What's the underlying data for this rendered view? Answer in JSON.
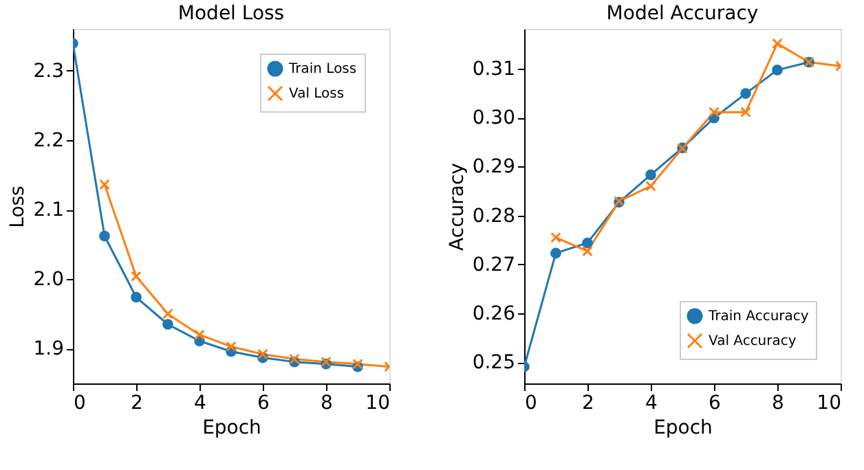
{
  "chart_data": [
    {
      "type": "line",
      "title": "Model Loss",
      "xlabel": "Epoch",
      "ylabel": "Loss",
      "xlim": [
        0,
        10
      ],
      "xticks": [
        0,
        2,
        4,
        6,
        8,
        10
      ],
      "ylim": [
        1.85,
        2.36
      ],
      "yticks": [
        1.9,
        {
          "value": 2.0,
          "label": "2.0"
        },
        2.1,
        2.2,
        2.3
      ],
      "legend": "top right",
      "grid": false,
      "series": [
        {
          "name": "Train Loss",
          "color": "#1f77b4",
          "marker": "circle",
          "x": [
            0,
            1,
            2,
            3,
            4,
            5,
            6,
            7,
            8,
            9
          ],
          "values": [
            2.339,
            2.062,
            1.974,
            1.935,
            1.911,
            1.896,
            1.887,
            1.881,
            1.878,
            1.874
          ]
        },
        {
          "name": "Val Loss",
          "color": "#ff7f0e",
          "marker": "cross",
          "x": [
            1,
            2,
            3,
            4,
            5,
            6,
            7,
            8,
            9,
            10
          ],
          "values": [
            2.136,
            2.004,
            1.95,
            1.92,
            1.903,
            1.892,
            1.885,
            1.881,
            1.878,
            1.874
          ]
        }
      ]
    },
    {
      "type": "line",
      "title": "Model Accuracy",
      "xlabel": "Epoch",
      "ylabel": "Accuracy",
      "xlim": [
        0,
        10
      ],
      "xticks": [
        0,
        2,
        4,
        6,
        8,
        10
      ],
      "ylim": [
        0.2457,
        0.3181
      ],
      "yticks": [
        0.25,
        0.26,
        0.27,
        0.28,
        0.29,
        {
          "value": 0.3,
          "label": "0.30"
        },
        0.31
      ],
      "legend": "bottom right",
      "grid": false,
      "series": [
        {
          "name": "Train Accuracy",
          "color": "#1f77b4",
          "marker": "circle",
          "x": [
            0,
            1,
            2,
            3,
            4,
            5,
            6,
            7,
            8,
            9
          ],
          "values": [
            0.2491,
            0.2723,
            0.2744,
            0.2827,
            0.2883,
            0.2938,
            0.2999,
            0.3049,
            0.3097,
            0.3113
          ]
        },
        {
          "name": "Val Accuracy",
          "color": "#ff7f0e",
          "marker": "cross",
          "x": [
            1,
            2,
            3,
            4,
            5,
            6,
            7,
            8,
            9,
            10
          ],
          "values": [
            0.2755,
            0.2727,
            0.2829,
            0.286,
            0.2937,
            0.3011,
            0.3011,
            0.3151,
            0.3113,
            0.3105
          ]
        }
      ]
    }
  ]
}
